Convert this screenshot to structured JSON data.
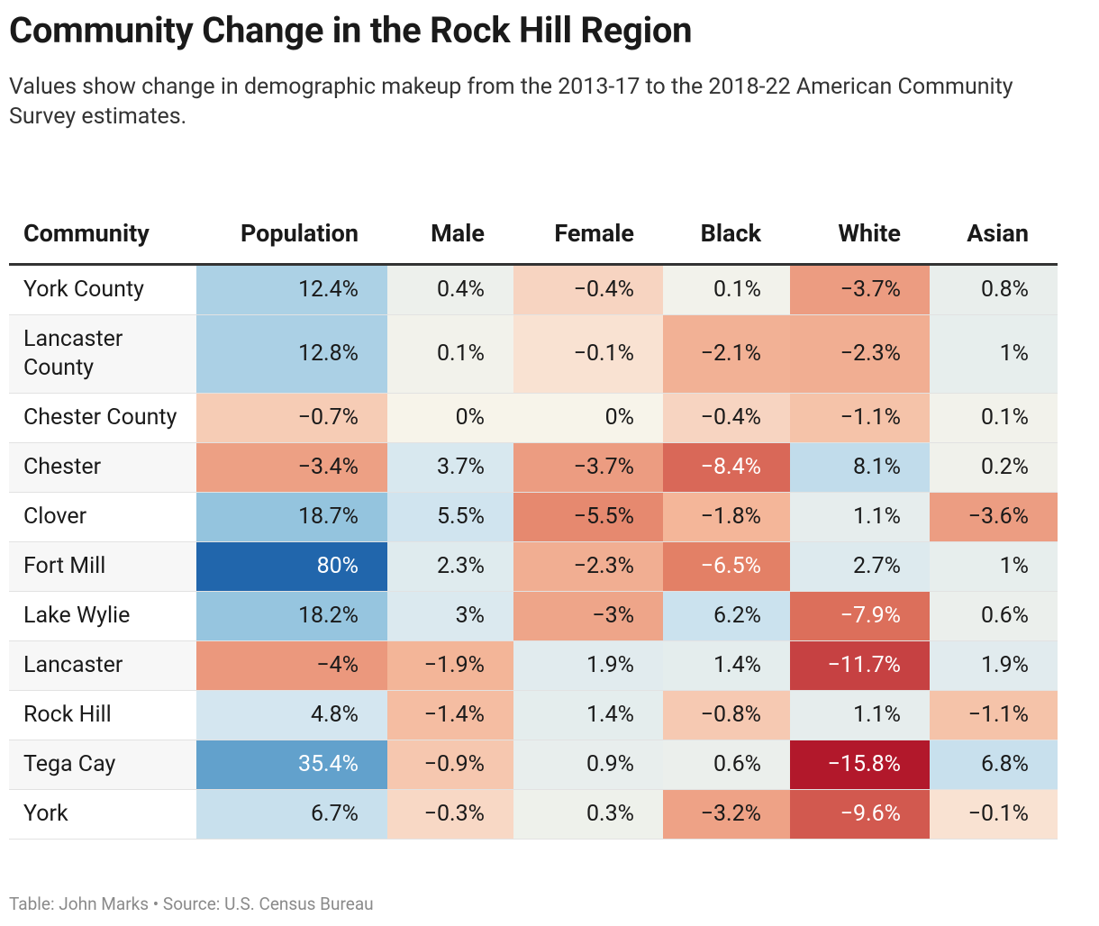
{
  "title": "Community Change in the Rock Hill Region",
  "subtitle": "Values show change in demographic makeup from the 2013-17 to the 2018-22 American Community Survey estimates.",
  "table": {
    "columns": [
      "Community",
      "Population",
      "Male",
      "Female",
      "Black",
      "White",
      "Asian"
    ],
    "rows": [
      [
        "York County",
        "12.4%",
        "0.4%",
        "−0.4%",
        "0.1%",
        "−3.7%",
        "0.8%"
      ],
      [
        "Lancaster County",
        "12.8%",
        "0.1%",
        "−0.1%",
        "−2.1%",
        "−2.3%",
        "1%"
      ],
      [
        "Chester County",
        "−0.7%",
        "0%",
        "0%",
        "−0.4%",
        "−1.1%",
        "0.1%"
      ],
      [
        "Chester",
        "−3.4%",
        "3.7%",
        "−3.7%",
        "−8.4%",
        "8.1%",
        "0.2%"
      ],
      [
        "Clover",
        "18.7%",
        "5.5%",
        "−5.5%",
        "−1.8%",
        "1.1%",
        "−3.6%"
      ],
      [
        "Fort Mill",
        "80%",
        "2.3%",
        "−2.3%",
        "−6.5%",
        "2.7%",
        "1%"
      ],
      [
        "Lake Wylie",
        "18.2%",
        "3%",
        "−3%",
        "6.2%",
        "−7.9%",
        "0.6%"
      ],
      [
        "Lancaster",
        "−4%",
        "−1.9%",
        "1.9%",
        "1.4%",
        "−11.7%",
        "1.9%"
      ],
      [
        "Rock Hill",
        "4.8%",
        "−1.4%",
        "1.4%",
        "−0.8%",
        "1.1%",
        "−1.1%"
      ],
      [
        "Tega Cay",
        "35.4%",
        "−0.9%",
        "0.9%",
        "0.6%",
        "−15.8%",
        "6.8%"
      ],
      [
        "York",
        "6.7%",
        "−0.3%",
        "0.3%",
        "−3.2%",
        "−9.6%",
        "−0.1%"
      ]
    ]
  },
  "footer": "Table: John Marks • Source: U.S. Census Bureau"
}
